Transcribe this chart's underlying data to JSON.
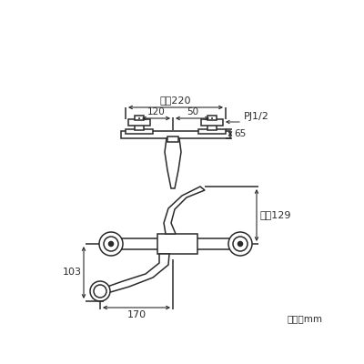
{
  "bg_color": "#ffffff",
  "line_color": "#2a2a2a",
  "text_color": "#2a2a2a",
  "figsize": [
    4.0,
    4.0
  ],
  "dpi": 100,
  "annotations": {
    "max220": "最大220",
    "d120": "120",
    "d50": "50",
    "pj": "PJ1/2",
    "d65": "65",
    "max129": "最大129",
    "d103": "103",
    "d170": "170",
    "unit": "単位：mm"
  }
}
